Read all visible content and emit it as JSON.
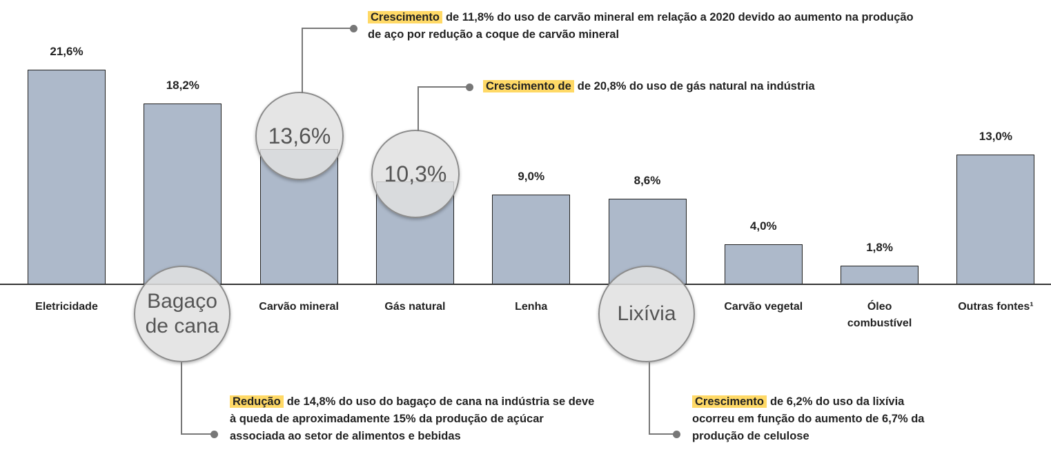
{
  "chart_data": {
    "type": "bar",
    "categories": [
      "Eletricidade",
      "Bagaço de cana",
      "Carvão mineral",
      "Gás natural",
      "Lenha",
      "Lixívia",
      "Carvão vegetal",
      "Óleo combustível",
      "Outras fontes¹"
    ],
    "values": [
      21.6,
      18.2,
      13.6,
      10.3,
      9.0,
      8.6,
      4.0,
      1.8,
      13.0
    ],
    "value_labels": [
      "21,6%",
      "18,2%",
      "13,6%",
      "10,3%",
      "9,0%",
      "8,6%",
      "4,0%",
      "1,8%",
      "13,0%"
    ],
    "color": "#adb9ca",
    "annotations": [
      {
        "highlight": "Crescimento",
        "text": "de 11,8% do uso de carvão mineral em relação a 2020 devido ao aumento na produção de aço por redução a coque de carvão mineral"
      },
      {
        "highlight": "Crescimento de",
        "text": "de 20,8% do uso de gás natural na indústria"
      },
      {
        "highlight": "Redução",
        "text": "de 14,8% do uso do bagaço de cana na indústria se deve à queda de aproximadamente 15% da produção de açúcar associada ao setor de alimentos e bebidas"
      },
      {
        "highlight": "Crescimento",
        "text": "de 6,2% do uso da lixívia ocorreu em função do aumento de 6,7% da produção de celulose"
      }
    ]
  }
}
